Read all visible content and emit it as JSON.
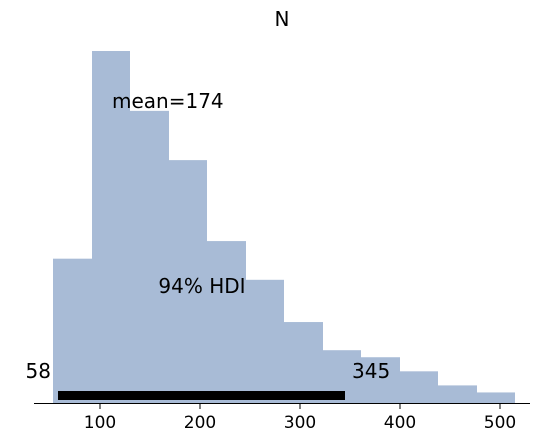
{
  "chart_data": {
    "type": "bar",
    "title": "N",
    "xlabel": "",
    "ylabel": "",
    "bin_edges": [
      53,
      92,
      130,
      169,
      207,
      246,
      284,
      323,
      361,
      400,
      438,
      477,
      515
    ],
    "values": [
      0.41,
      1.0,
      0.83,
      0.69,
      0.46,
      0.35,
      0.23,
      0.15,
      0.13,
      0.09,
      0.05,
      0.03,
      0.03
    ],
    "xlim": [
      34,
      530
    ],
    "ylim": [
      0,
      1.0
    ],
    "xticks": [
      100,
      200,
      300,
      400,
      500
    ],
    "bar_color": "#a8bbd6",
    "grid": false,
    "mean_label": "mean=174",
    "hdi_label": "94% HDI",
    "hdi_low": 58,
    "hdi_high": 345,
    "hdi_low_label": "58",
    "hdi_high_label": "345",
    "hdi_color": "#000000"
  }
}
